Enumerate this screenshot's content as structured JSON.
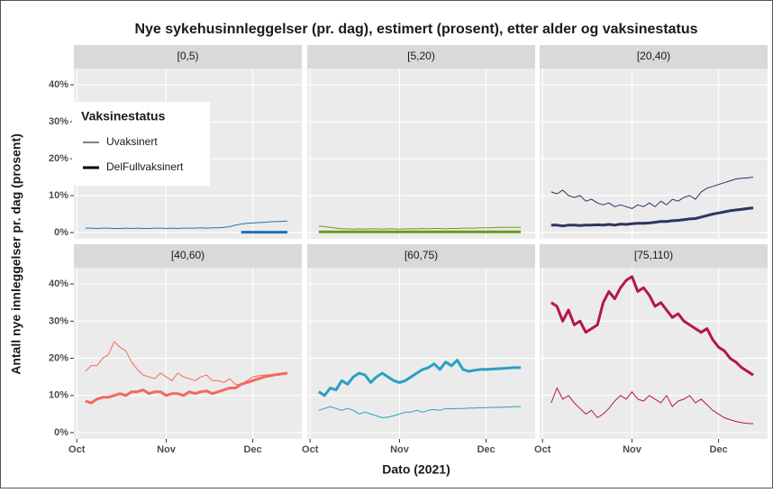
{
  "chart_data": {
    "type": "line",
    "title": "Nye sykehusinnleggelser (pr. dag), estimert (prosent), etter alder og vaksinestatus",
    "x_label": "Dato (2021)",
    "y_label": "Antall nye innleggelser pr. dag (prosent)",
    "legend": {
      "title": "Vaksinestatus",
      "entries": [
        "Uvaksinert",
        "DelFullvaksinert"
      ]
    },
    "x": [
      3,
      5,
      7,
      9,
      11,
      13,
      15,
      17,
      19,
      21,
      23,
      25,
      27,
      29,
      31,
      33,
      35,
      37,
      39,
      41,
      43,
      45,
      47,
      49,
      51,
      53,
      55,
      57,
      59,
      61,
      63,
      65,
      67,
      69,
      71,
      73
    ],
    "xlim": [
      -1,
      78
    ],
    "xticks": [
      {
        "value": 0,
        "label": "Oct"
      },
      {
        "value": 31,
        "label": "Nov"
      },
      {
        "value": 61,
        "label": "Dec"
      }
    ],
    "ylim": [
      -1.7,
      44.4
    ],
    "yticks": [
      {
        "value": 0,
        "label": "0%"
      },
      {
        "value": 10,
        "label": "10%"
      },
      {
        "value": 20,
        "label": "20%"
      },
      {
        "value": 30,
        "label": "30%"
      },
      {
        "value": 40,
        "label": "40%"
      }
    ],
    "grid": true,
    "panels": [
      {
        "label": "[0,5)",
        "color": "#2171b5",
        "series": [
          {
            "values": [
              1.2,
              1.2,
              1.1,
              1.2,
              1.2,
              1.1,
              1.1,
              1.2,
              1.1,
              1.2,
              1.1,
              1.1,
              1.2,
              1.2,
              1.1,
              1.2,
              1.1,
              1.2,
              1.2,
              1.2,
              1.3,
              1.2,
              1.3,
              1.3,
              1.4,
              1.6,
              2.0,
              2.3,
              2.5,
              2.6,
              2.7,
              2.8,
              2.9,
              3.0,
              3.0,
              3.1
            ]
          },
          {
            "values": [
              null,
              null,
              null,
              null,
              null,
              null,
              null,
              null,
              null,
              null,
              null,
              null,
              null,
              null,
              null,
              null,
              null,
              null,
              null,
              null,
              null,
              null,
              null,
              null,
              null,
              null,
              null,
              0.1,
              0.1,
              0.1,
              0.1,
              0.1,
              0.1,
              0.1,
              0.1,
              0.1
            ]
          }
        ]
      },
      {
        "label": "[5,20)",
        "color": "#6b9a1f",
        "series": [
          {
            "values": [
              1.8,
              1.6,
              1.4,
              1.2,
              1.0,
              1.0,
              0.9,
              1.0,
              0.9,
              1.0,
              1.0,
              0.9,
              1.0,
              1.0,
              0.9,
              1.0,
              1.0,
              1.0,
              1.1,
              1.0,
              1.1,
              1.1,
              1.0,
              1.1,
              1.1,
              1.2,
              1.2,
              1.2,
              1.3,
              1.3,
              1.3,
              1.4,
              1.4,
              1.4,
              1.4,
              1.4
            ]
          },
          {
            "values": [
              0.2,
              0.2,
              0.2,
              0.2,
              0.2,
              0.2,
              0.2,
              0.2,
              0.2,
              0.2,
              0.2,
              0.2,
              0.2,
              0.2,
              0.2,
              0.2,
              0.2,
              0.2,
              0.2,
              0.2,
              0.2,
              0.2,
              0.2,
              0.2,
              0.2,
              0.2,
              0.2,
              0.2,
              0.2,
              0.2,
              0.2,
              0.2,
              0.2,
              0.2,
              0.2,
              0.2
            ]
          }
        ]
      },
      {
        "label": "[20,40)",
        "color": "#2d3561",
        "series": [
          {
            "values": [
              11,
              10.5,
              11.5,
              10,
              9.5,
              10,
              8.5,
              9,
              8,
              7.5,
              8,
              7,
              7.5,
              7,
              6.5,
              7.5,
              7,
              8,
              7,
              8.5,
              7.5,
              9,
              8.5,
              9.5,
              10,
              9,
              11,
              12,
              12.5,
              13,
              13.5,
              14,
              14.5,
              14.7,
              14.8,
              15
            ]
          },
          {
            "values": [
              2,
              2,
              1.8,
              2,
              2,
              1.9,
              2,
              2,
              2.1,
              2,
              2.2,
              2,
              2.3,
              2.2,
              2.4,
              2.5,
              2.5,
              2.6,
              2.8,
              3,
              3,
              3.2,
              3.3,
              3.5,
              3.7,
              3.8,
              4.2,
              4.6,
              5,
              5.3,
              5.6,
              5.9,
              6.1,
              6.3,
              6.5,
              6.7
            ]
          }
        ]
      },
      {
        "label": "[40,60)",
        "color": "#f4685c",
        "series": [
          {
            "values": [
              16.5,
              18,
              18,
              20,
              21,
              24.5,
              23,
              22,
              19,
              17,
              15.5,
              15,
              14.5,
              16,
              15,
              14,
              16,
              15,
              14.5,
              14,
              15,
              15.5,
              14,
              14,
              13.5,
              14.5,
              13,
              13,
              14,
              15,
              15.3,
              15.5,
              15.6,
              15.7,
              15.8,
              16
            ]
          },
          {
            "values": [
              8.5,
              8,
              9,
              9.5,
              9.5,
              10,
              10.5,
              10,
              11,
              11,
              11.5,
              10.5,
              11,
              11,
              10,
              10.5,
              10.5,
              10,
              11,
              10.5,
              11,
              11.2,
              10.5,
              11,
              11.5,
              12,
              12,
              13,
              13.5,
              14,
              14.5,
              15,
              15.3,
              15.6,
              15.8,
              16
            ]
          }
        ]
      },
      {
        "label": "[60,75)",
        "color": "#2aa0c4",
        "series": [
          {
            "values": [
              6,
              6.5,
              7,
              6.5,
              6,
              6.5,
              6,
              5,
              5.5,
              5,
              4.5,
              4,
              4.2,
              4.5,
              5,
              5.5,
              5.5,
              6,
              5.5,
              6,
              6.2,
              6,
              6.5,
              6.4,
              6.5,
              6.5,
              6.6,
              6.6,
              6.7,
              6.7,
              6.8,
              6.8,
              6.9,
              6.9,
              7,
              7
            ]
          },
          {
            "values": [
              11,
              10,
              12,
              11.5,
              14,
              13,
              15,
              16,
              15.5,
              13.5,
              15,
              16,
              15,
              14,
              13.5,
              14,
              15,
              16,
              17,
              17.5,
              18.5,
              17,
              19,
              18,
              19.5,
              17,
              16.5,
              16.8,
              17,
              17,
              17.1,
              17.2,
              17.3,
              17.4,
              17.5,
              17.5
            ]
          }
        ]
      },
      {
        "label": "[75,110)",
        "color": "#b5154b",
        "series": [
          {
            "values": [
              8,
              12,
              9,
              10,
              8,
              6.5,
              5,
              6,
              4,
              5,
              6.5,
              8.5,
              10,
              9,
              11,
              9,
              8.5,
              10,
              9,
              8,
              10,
              7,
              8.5,
              9,
              10,
              8,
              9,
              7.5,
              6,
              5,
              4,
              3.5,
              3,
              2.7,
              2.5,
              2.4
            ]
          },
          {
            "values": [
              35,
              34,
              30,
              33,
              29,
              30,
              27,
              28,
              29,
              35,
              38,
              36,
              39,
              41,
              42,
              38,
              39,
              37,
              34,
              35,
              33,
              31,
              32,
              30,
              29,
              28,
              27,
              28,
              25,
              23,
              22,
              20,
              19,
              17.5,
              16.5,
              15.5
            ]
          }
        ]
      }
    ]
  }
}
